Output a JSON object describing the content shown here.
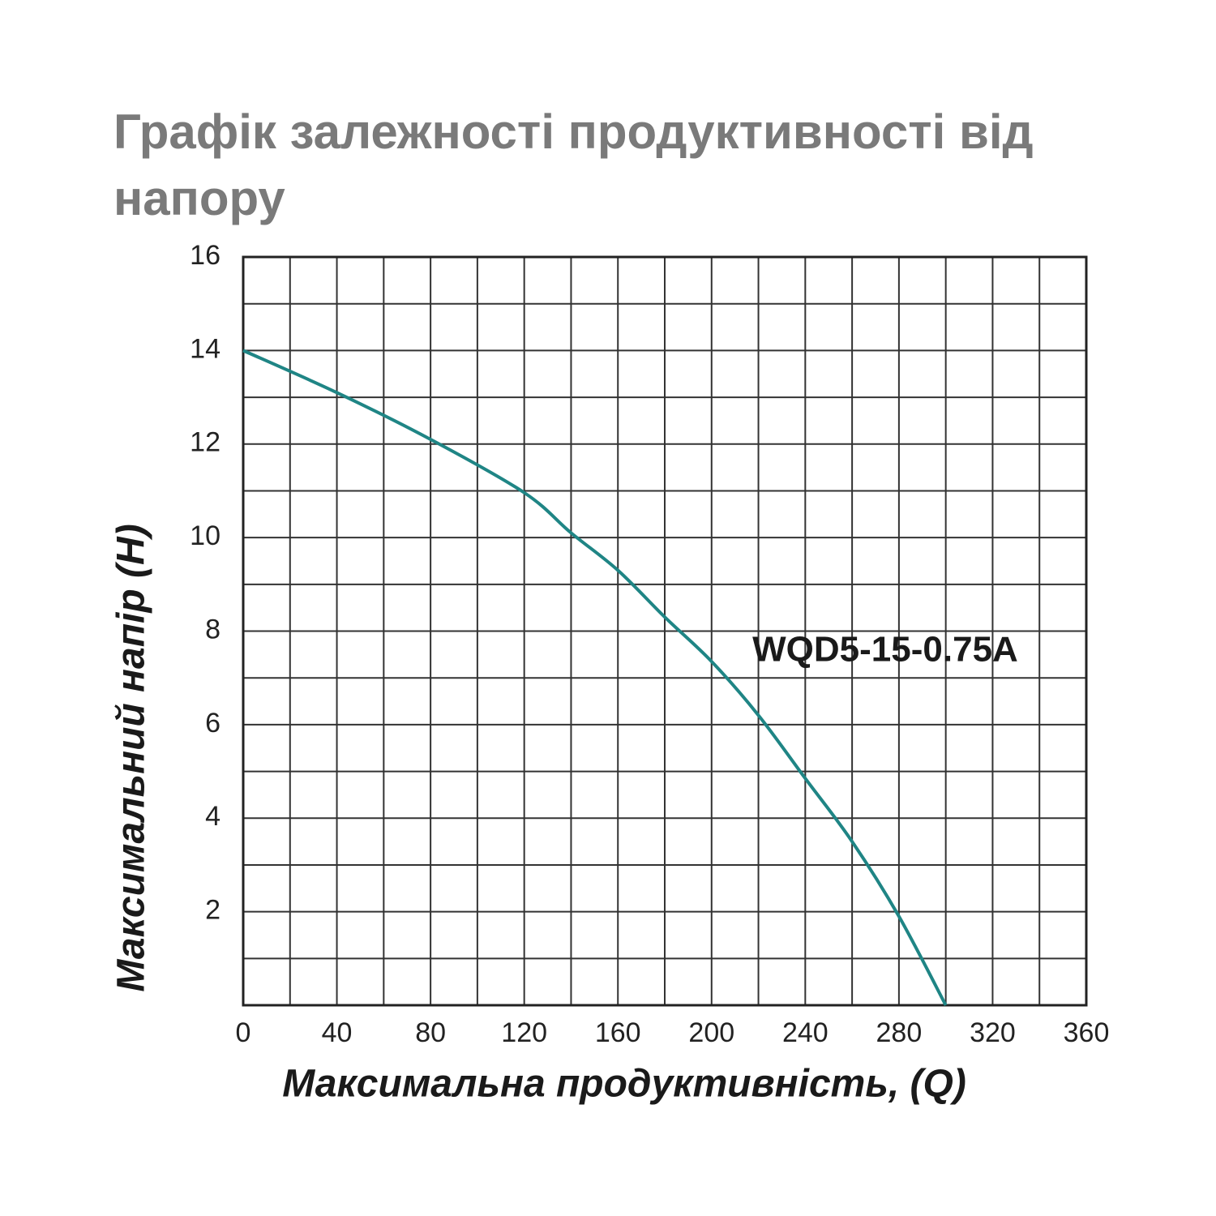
{
  "chart_data": {
    "type": "line",
    "title": "Графік залежності продуктивності від напору",
    "x_label": "Максимальна продуктивність, (Q)",
    "y_label": "Максимальний напір (H)",
    "annotation": "WQD5-15-0.75A",
    "x": [
      0,
      40,
      80,
      120,
      140,
      160,
      180,
      200,
      220,
      240,
      260,
      280,
      300
    ],
    "series": [
      {
        "name": "WQD5-15-0.75A",
        "color": "#1f8585",
        "values": [
          14,
          13.1,
          12.1,
          10.96,
          10.1,
          9.3,
          8.3,
          7.35,
          6.2,
          4.85,
          3.5,
          1.9,
          0
        ]
      }
    ],
    "xlim": [
      0,
      360
    ],
    "xticks": [
      0,
      40,
      80,
      120,
      160,
      200,
      240,
      280,
      320,
      360
    ],
    "xminorticks": [
      20,
      60,
      100,
      140,
      180,
      220,
      260,
      300,
      340
    ],
    "ylim": [
      0,
      16
    ],
    "yticks": [
      2,
      4,
      6,
      8,
      10,
      12,
      14,
      16
    ],
    "yminorticks": [
      1,
      3,
      5,
      7,
      9,
      11,
      13,
      15
    ],
    "grid": true
  }
}
